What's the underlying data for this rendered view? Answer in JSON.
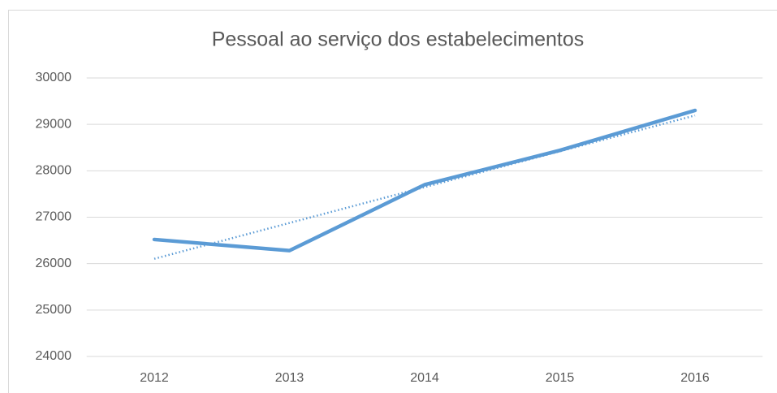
{
  "chart_data": {
    "type": "line",
    "title": "Pessoal ao serviço dos estabelecimentos",
    "categories": [
      "2012",
      "2013",
      "2014",
      "2015",
      "2016"
    ],
    "series": [
      {
        "color": "#5b9bd5",
        "values": [
          26520,
          26280,
          27700,
          28440,
          29300
        ]
      }
    ],
    "trendline": "linear",
    "ylim": [
      24000,
      30000
    ],
    "yticks": [
      24000,
      25000,
      26000,
      27000,
      28000,
      29000,
      30000
    ],
    "grid": true
  }
}
